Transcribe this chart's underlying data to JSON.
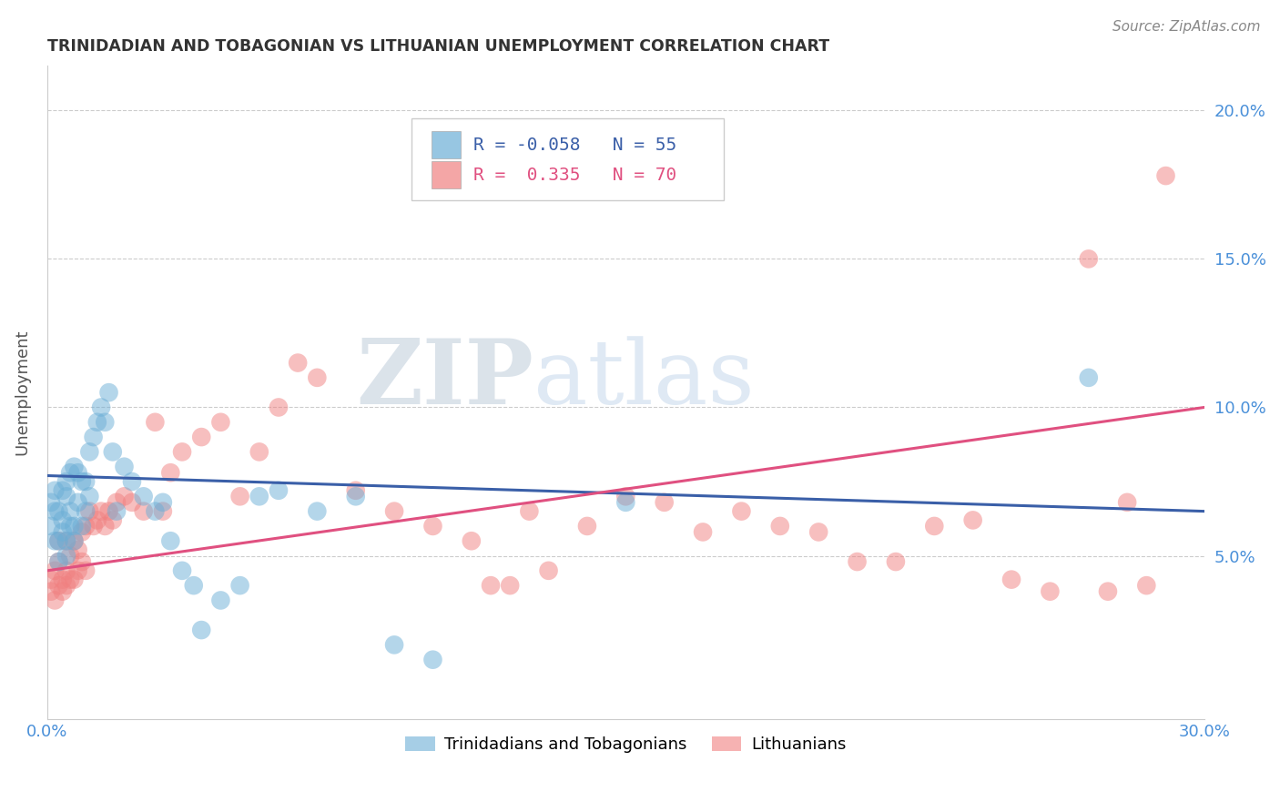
{
  "title": "TRINIDADIAN AND TOBAGONIAN VS LITHUANIAN UNEMPLOYMENT CORRELATION CHART",
  "source": "Source: ZipAtlas.com",
  "ylabel": "Unemployment",
  "yticks": [
    0.0,
    0.05,
    0.1,
    0.15,
    0.2
  ],
  "ytick_labels": [
    "",
    "5.0%",
    "10.0%",
    "15.0%",
    "20.0%"
  ],
  "xlim": [
    0.0,
    0.3
  ],
  "ylim": [
    -0.005,
    0.215
  ],
  "blue_R": -0.058,
  "blue_N": 55,
  "pink_R": 0.335,
  "pink_N": 70,
  "blue_color": "#6baed6",
  "pink_color": "#f08080",
  "blue_line_color": "#3a5fa8",
  "pink_line_color": "#e05080",
  "blue_label": "Trinidadians and Tobagonians",
  "pink_label": "Lithuanians",
  "watermark_zip": "ZIP",
  "watermark_atlas": "atlas",
  "blue_line": {
    "x0": 0.0,
    "y0": 0.077,
    "x1": 0.3,
    "y1": 0.065
  },
  "pink_line": {
    "x0": 0.0,
    "y0": 0.045,
    "x1": 0.3,
    "y1": 0.1
  },
  "blue_points_x": [
    0.001,
    0.001,
    0.002,
    0.002,
    0.002,
    0.003,
    0.003,
    0.003,
    0.004,
    0.004,
    0.004,
    0.005,
    0.005,
    0.005,
    0.005,
    0.006,
    0.006,
    0.006,
    0.007,
    0.007,
    0.007,
    0.008,
    0.008,
    0.009,
    0.009,
    0.01,
    0.01,
    0.011,
    0.011,
    0.012,
    0.013,
    0.014,
    0.015,
    0.016,
    0.017,
    0.018,
    0.02,
    0.022,
    0.025,
    0.028,
    0.03,
    0.032,
    0.035,
    0.038,
    0.04,
    0.045,
    0.05,
    0.055,
    0.06,
    0.07,
    0.08,
    0.09,
    0.1,
    0.15,
    0.27
  ],
  "blue_points_y": [
    0.06,
    0.068,
    0.055,
    0.065,
    0.072,
    0.048,
    0.055,
    0.065,
    0.058,
    0.062,
    0.072,
    0.05,
    0.055,
    0.07,
    0.075,
    0.06,
    0.065,
    0.078,
    0.055,
    0.06,
    0.08,
    0.068,
    0.078,
    0.06,
    0.075,
    0.065,
    0.075,
    0.07,
    0.085,
    0.09,
    0.095,
    0.1,
    0.095,
    0.105,
    0.085,
    0.065,
    0.08,
    0.075,
    0.07,
    0.065,
    0.068,
    0.055,
    0.045,
    0.04,
    0.025,
    0.035,
    0.04,
    0.07,
    0.072,
    0.065,
    0.07,
    0.02,
    0.015,
    0.068,
    0.11
  ],
  "pink_points_x": [
    0.001,
    0.001,
    0.002,
    0.002,
    0.003,
    0.003,
    0.003,
    0.004,
    0.004,
    0.005,
    0.005,
    0.005,
    0.006,
    0.006,
    0.007,
    0.007,
    0.008,
    0.008,
    0.009,
    0.009,
    0.01,
    0.01,
    0.011,
    0.012,
    0.013,
    0.014,
    0.015,
    0.016,
    0.017,
    0.018,
    0.02,
    0.022,
    0.025,
    0.028,
    0.03,
    0.032,
    0.035,
    0.04,
    0.045,
    0.05,
    0.055,
    0.06,
    0.065,
    0.07,
    0.08,
    0.09,
    0.1,
    0.11,
    0.115,
    0.12,
    0.125,
    0.13,
    0.14,
    0.15,
    0.16,
    0.17,
    0.18,
    0.19,
    0.2,
    0.21,
    0.22,
    0.23,
    0.24,
    0.25,
    0.26,
    0.27,
    0.275,
    0.28,
    0.285,
    0.29
  ],
  "pink_points_y": [
    0.038,
    0.042,
    0.035,
    0.045,
    0.04,
    0.048,
    0.055,
    0.038,
    0.042,
    0.04,
    0.045,
    0.055,
    0.042,
    0.05,
    0.042,
    0.055,
    0.045,
    0.052,
    0.048,
    0.058,
    0.045,
    0.06,
    0.065,
    0.06,
    0.062,
    0.065,
    0.06,
    0.065,
    0.062,
    0.068,
    0.07,
    0.068,
    0.065,
    0.095,
    0.065,
    0.078,
    0.085,
    0.09,
    0.095,
    0.07,
    0.085,
    0.1,
    0.115,
    0.11,
    0.072,
    0.065,
    0.06,
    0.055,
    0.04,
    0.04,
    0.065,
    0.045,
    0.06,
    0.07,
    0.068,
    0.058,
    0.065,
    0.06,
    0.058,
    0.048,
    0.048,
    0.06,
    0.062,
    0.042,
    0.038,
    0.15,
    0.038,
    0.068,
    0.04,
    0.178
  ]
}
